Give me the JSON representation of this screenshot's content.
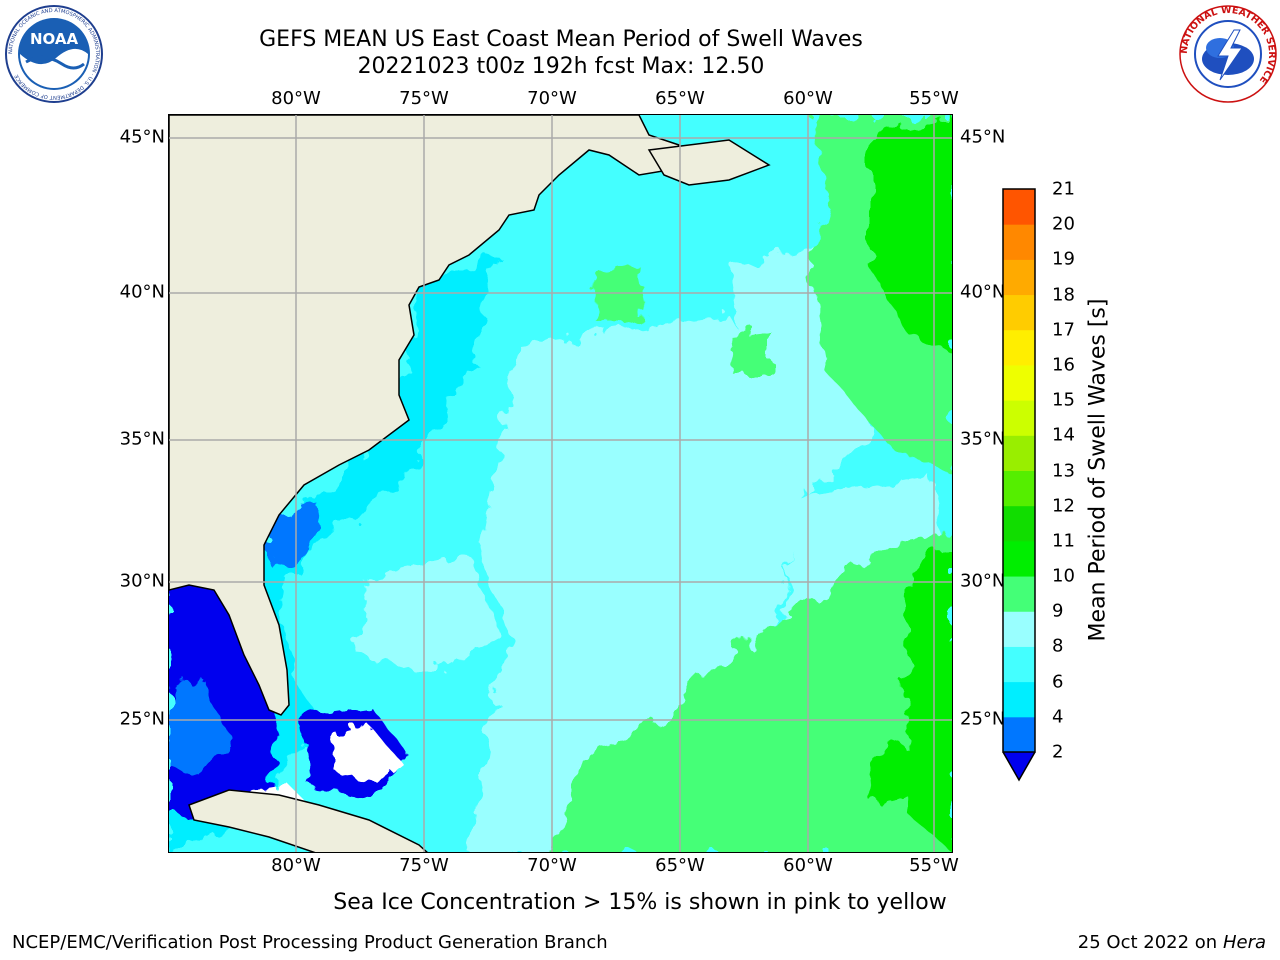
{
  "title_line1": "GEFS MEAN US East Coast Mean Period of Swell Waves",
  "title_line2": "20221023 t00z 192h fcst   Max: 12.50",
  "logos": {
    "left": {
      "name": "NOAA",
      "text": "NOAA",
      "ring_text": "NATIONAL OCEANIC AND ATMOSPHERIC ADMINISTRATION · U.S. DEPARTMENT OF COMMERCE"
    },
    "right": {
      "name": "National Weather Service",
      "ring_text": "NATIONAL WEATHER SERVICE"
    }
  },
  "map": {
    "region": "US East Coast / Western North Atlantic",
    "lon_labels": [
      "80°W",
      "75°W",
      "70°W",
      "65°W",
      "60°W",
      "55°W"
    ],
    "lat_labels": [
      "45°N",
      "40°N",
      "35°N",
      "30°N",
      "25°N"
    ],
    "lon_range": [
      -85,
      -54.3
    ],
    "lat_range": [
      20.3,
      46.1
    ],
    "grid": true,
    "colors": {
      "land": "#eeeedd",
      "coast": "#000000",
      "grid": "#aaaaaa"
    }
  },
  "colorbar": {
    "label": "Mean Period of Swell Waves [s]",
    "ticks": [
      "2",
      "4",
      "6",
      "8",
      "9",
      "10",
      "11",
      "12",
      "13",
      "14",
      "15",
      "16",
      "17",
      "18",
      "19",
      "20",
      "21"
    ],
    "levels": [
      2,
      4,
      6,
      8,
      9,
      10,
      11,
      12,
      13,
      14,
      15,
      16,
      17,
      18,
      19,
      20,
      21
    ],
    "colors": [
      "#0077ff",
      "#00eeff",
      "#44ffff",
      "#99ffff",
      "#44ff77",
      "#00ee00",
      "#11dd00",
      "#55ee00",
      "#99ee00",
      "#ccff00",
      "#eeff00",
      "#ffee00",
      "#ffcc00",
      "#ffaa00",
      "#ff8800",
      "#ff5500",
      "#ff2200",
      "#ff0000"
    ],
    "under_color": "#0000ee",
    "extend": "min"
  },
  "ice_note": "Sea Ice Concentration > 15% is shown in pink to yellow",
  "footer_left": "NCEP/EMC/Verification Post Processing Product Generation Branch",
  "footer_date": "25 Oct 2022 on",
  "footer_machine": "Hera"
}
